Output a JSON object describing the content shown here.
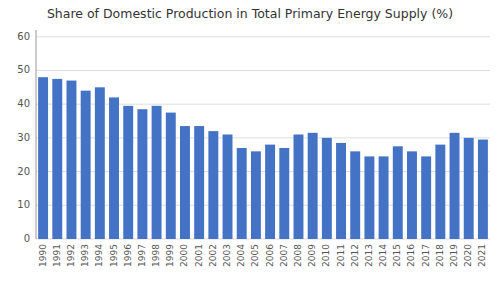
{
  "chart_data": {
    "type": "bar",
    "title": "Share of Domestic Production in Total Primary Energy Supply (%)",
    "categories": [
      "1990",
      "1991",
      "1992",
      "1993",
      "1994",
      "1995",
      "1996",
      "1997",
      "1998",
      "1999",
      "2000",
      "2001",
      "2002",
      "2003",
      "2004",
      "2005",
      "2006",
      "2007",
      "2008",
      "2009",
      "2010",
      "2011",
      "2012",
      "2013",
      "2014",
      "2015",
      "2016",
      "2017",
      "2018",
      "2019",
      "2020",
      "2021"
    ],
    "values": [
      48,
      47.5,
      47,
      44,
      45,
      42,
      39.5,
      38.5,
      39.5,
      37.5,
      33.5,
      33.5,
      32,
      31,
      27,
      26,
      28,
      27,
      31,
      31.5,
      30,
      28.5,
      26,
      24.5,
      24.5,
      27.5,
      26,
      24.5,
      28,
      31.5,
      30,
      29.5
    ],
    "color": "#4472c4",
    "ylim": [
      0,
      62
    ],
    "yticks": [
      0,
      10,
      20,
      30,
      40,
      50,
      60
    ],
    "grid": true
  }
}
